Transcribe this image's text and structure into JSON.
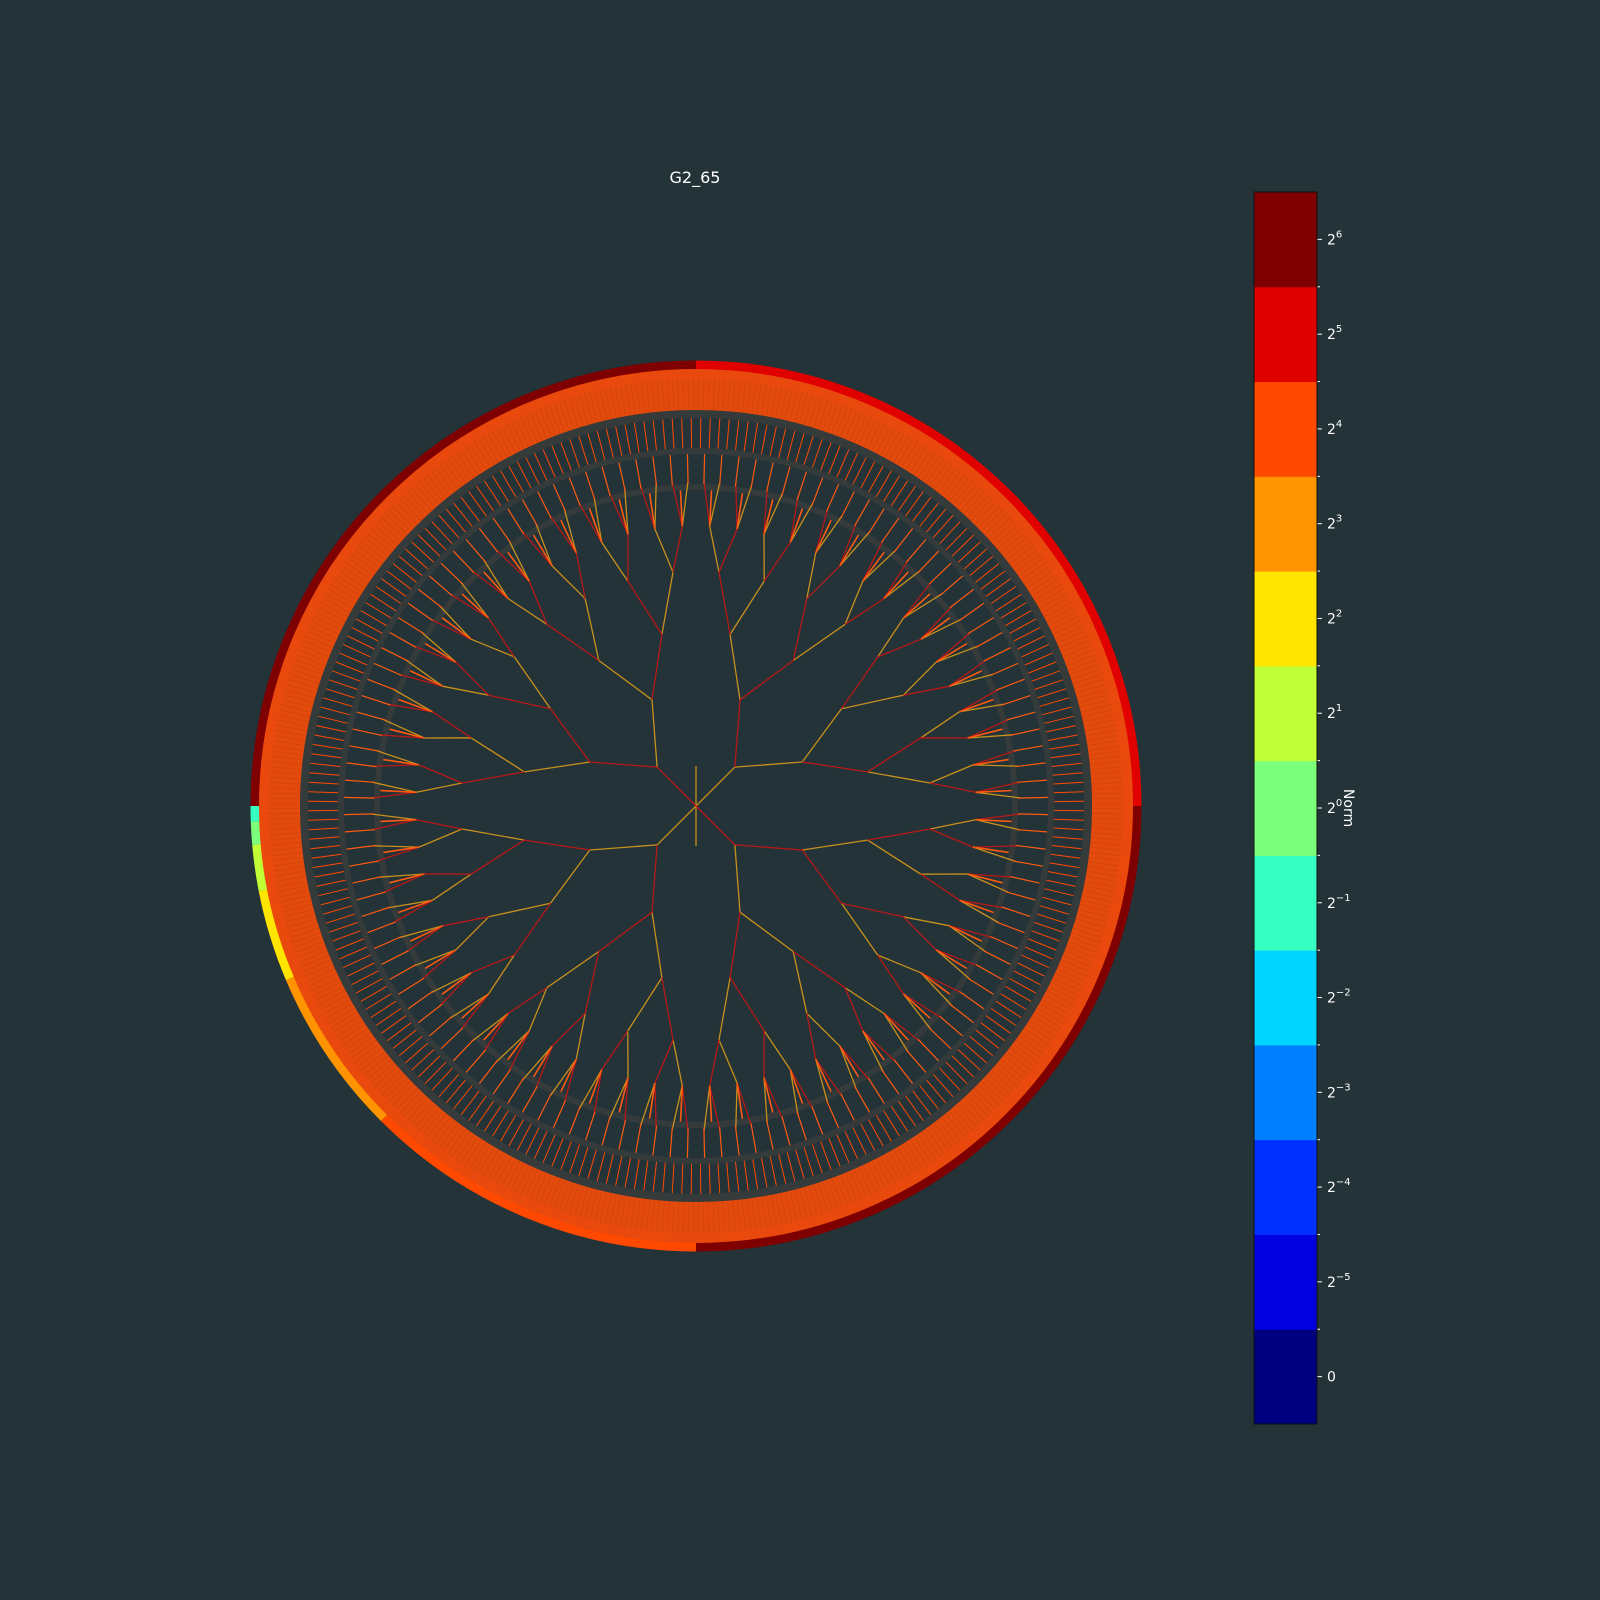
{
  "chart_data": {
    "type": "radial-tree",
    "title": "G2_65",
    "colorbar": {
      "label": "Norm",
      "scale": "log2",
      "levels": [
        {
          "base": "0",
          "exp": "",
          "color": "#00007f"
        },
        {
          "base": "2",
          "exp": "−5",
          "color": "#0000e0"
        },
        {
          "base": "2",
          "exp": "−4",
          "color": "#0030ff"
        },
        {
          "base": "2",
          "exp": "−3",
          "color": "#0080ff"
        },
        {
          "base": "2",
          "exp": "−2",
          "color": "#00d4ff"
        },
        {
          "base": "2",
          "exp": "−1",
          "color": "#36ffc1"
        },
        {
          "base": "2",
          "exp": "0",
          "color": "#7cff7a"
        },
        {
          "base": "2",
          "exp": "1",
          "color": "#c1ff36"
        },
        {
          "base": "2",
          "exp": "2",
          "color": "#ffe500"
        },
        {
          "base": "2",
          "exp": "3",
          "color": "#ff9400"
        },
        {
          "base": "2",
          "exp": "4",
          "color": "#ff4800"
        },
        {
          "base": "2",
          "exp": "5",
          "color": "#e00000"
        },
        {
          "base": "2",
          "exp": "6",
          "color": "#7f0000"
        }
      ]
    },
    "tree": {
      "levels": 9,
      "branching": 2,
      "inner_rings_value_exp": 4,
      "outer_ring_segments": [
        {
          "from_deg": -90,
          "to_deg": 0,
          "value_exp": 5
        },
        {
          "from_deg": 0,
          "to_deg": 90,
          "value_exp": 6
        },
        {
          "from_deg": 90,
          "to_deg": 135,
          "value_exp": 4
        },
        {
          "from_deg": 135,
          "to_deg": 157,
          "value_exp": 3
        },
        {
          "from_deg": 157,
          "to_deg": 169,
          "value_exp": 2
        },
        {
          "from_deg": 169,
          "to_deg": 175,
          "value_exp": 1
        },
        {
          "from_deg": 175,
          "to_deg": 178,
          "value_exp": 0
        },
        {
          "from_deg": 178,
          "to_deg": 180,
          "value_exp": -1
        },
        {
          "from_deg": 180,
          "to_deg": 270,
          "value_exp": 6
        }
      ],
      "edge_colors": [
        "#c8901c",
        "#b81818"
      ],
      "leaf_color": "#ff5a10"
    },
    "colors": {
      "background": "#233338",
      "gap": "#353b3b"
    }
  }
}
